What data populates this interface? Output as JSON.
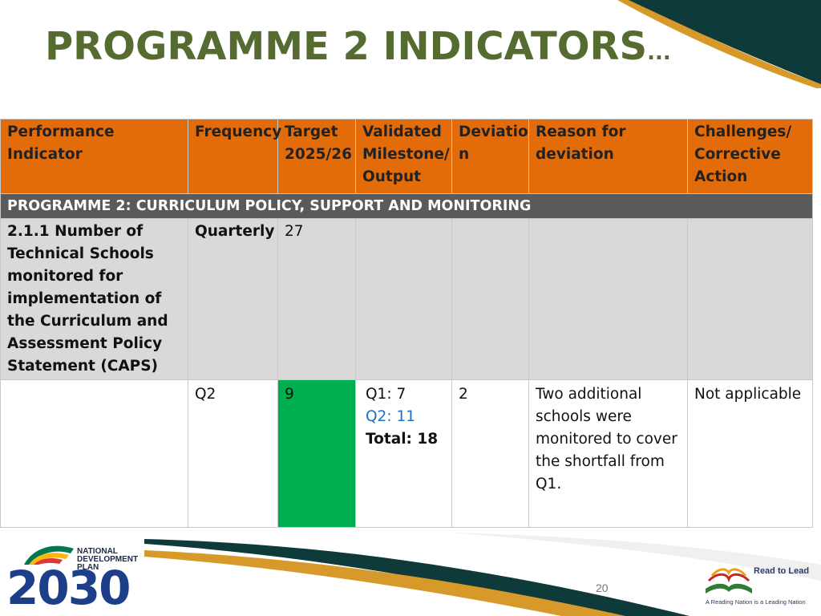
{
  "slide": {
    "title": "PROGRAMME 2 INDICATORS",
    "title_suffix": "...",
    "page_number": "20"
  },
  "table": {
    "headers": [
      "Performance Indicator",
      "Frequency",
      "Target 2025/26",
      "Validated Milestone/ Output",
      "Deviatio n",
      "Reason for deviation",
      "Challenges/ Corrective Action"
    ],
    "section_label": "PROGRAMME 2: CURRICULUM POLICY, SUPPORT AND MONITORING",
    "indicator_row": {
      "indicator": "2.1.1 Number of Technical Schools monitored for implementation of the Curriculum and Assessment Policy Statement (CAPS)",
      "frequency": "Quarterly",
      "target": "27"
    },
    "data_row": {
      "frequency": "Q2",
      "target": "9",
      "milestone_q1": "Q1: 7",
      "milestone_q2": "Q2: 11",
      "milestone_total": "Total: 18",
      "deviation": "2",
      "reason": "Two additional schools were monitored to cover the shortfall from Q1.",
      "challenges": "Not applicable"
    }
  },
  "logos": {
    "ndp_text": "NATIONAL DEVELOPMENT PLAN",
    "ndp_year": "2030",
    "rtl_title": "Read to Lead",
    "rtl_tagline": "A Reading Nation is a Leading Nation"
  },
  "colors": {
    "header_orange": "#e36c0a",
    "section_grey": "#5a5a5a",
    "target_green": "#00b050",
    "title_olive": "#556b2f",
    "deco_dark_teal": "#0e3b3a",
    "deco_gold": "#d79a2a",
    "q2_blue": "#1f6fbf"
  }
}
